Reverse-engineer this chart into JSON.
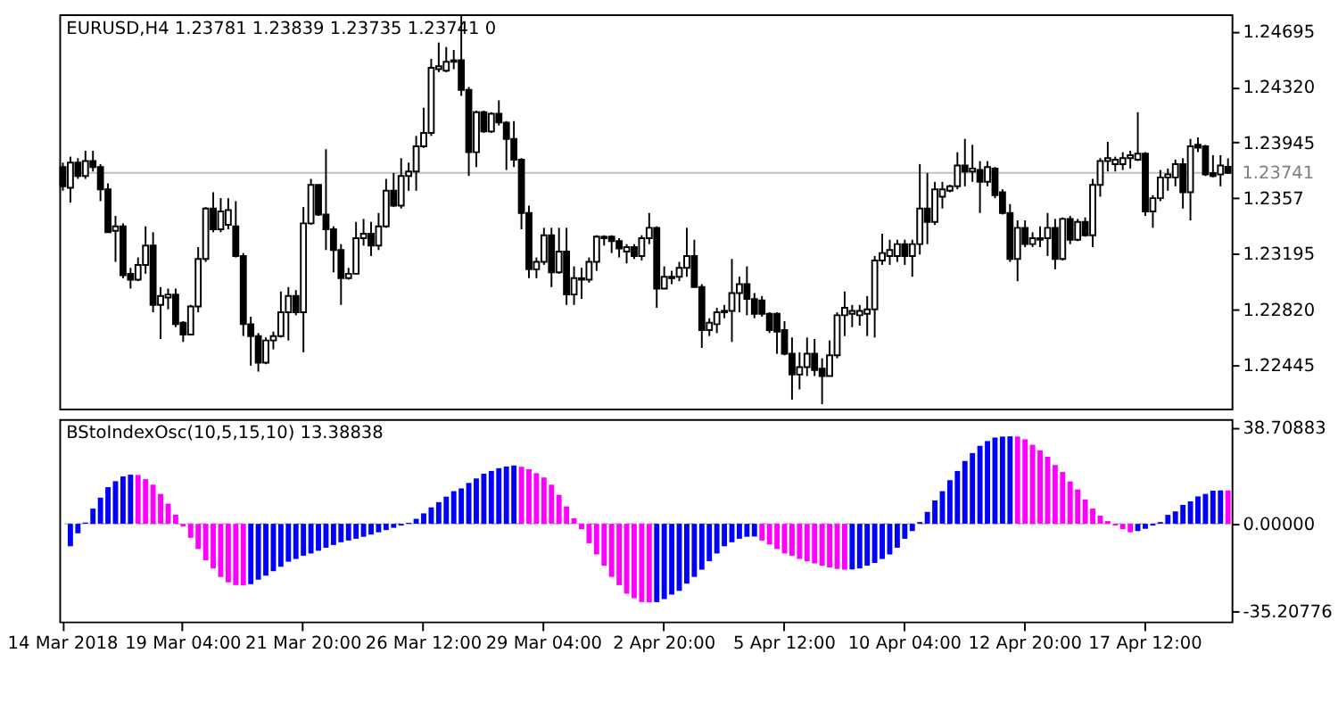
{
  "chart_data": [
    {
      "type": "candlestick",
      "title": "EURUSD,H4 1.23781 1.23839 1.23735 1.23741 0",
      "color": "#000000",
      "categories": [
        null,
        null,
        null,
        null,
        null,
        null,
        null,
        null,
        null,
        null,
        null,
        null,
        null,
        null,
        null,
        null,
        null,
        null,
        null,
        null,
        null,
        null,
        null,
        null,
        null,
        null,
        null,
        null,
        null,
        null,
        null,
        null,
        null,
        null,
        null,
        null,
        null,
        null,
        null,
        null,
        null,
        null,
        null,
        null,
        null,
        null,
        null,
        null,
        null,
        null,
        null,
        null,
        null,
        null,
        null,
        null,
        null,
        null,
        null,
        null,
        null,
        null,
        null,
        null,
        null,
        null,
        null,
        null,
        null,
        null,
        null,
        null,
        null,
        null,
        null,
        null,
        null,
        null,
        null,
        null,
        null,
        null,
        null,
        null,
        null,
        null,
        null,
        null,
        null,
        null,
        null,
        null,
        null,
        null,
        null,
        null,
        null,
        null,
        null,
        null,
        null,
        null,
        null,
        null,
        null,
        null,
        null,
        null,
        null,
        null,
        null,
        null,
        null,
        null,
        null,
        null,
        null,
        null,
        null,
        null,
        null,
        null,
        null,
        null,
        null,
        null,
        null,
        null,
        null,
        null,
        null,
        null,
        null,
        null,
        null,
        null,
        null,
        null,
        null,
        null,
        null,
        null,
        null,
        null,
        null,
        null,
        null,
        null,
        null,
        null,
        null,
        null,
        null,
        null,
        null,
        null
      ],
      "ohlc": [
        [
          1.2378,
          1.2381,
          1.2362,
          1.2365
        ],
        [
          1.2364,
          1.2385,
          1.2354,
          1.2381
        ],
        [
          1.2381,
          1.2384,
          1.237,
          1.2372
        ],
        [
          1.2372,
          1.2389,
          1.237,
          1.2382
        ],
        [
          1.2382,
          1.2389,
          1.2375,
          1.2378
        ],
        [
          1.2378,
          1.238,
          1.2355,
          1.2363
        ],
        [
          1.2363,
          1.2367,
          1.2334,
          1.2334
        ],
        [
          1.2335,
          1.2345,
          1.2314,
          1.2338
        ],
        [
          1.2338,
          1.234,
          1.2303,
          1.2305
        ],
        [
          1.2306,
          1.231,
          1.2296,
          1.2302
        ],
        [
          1.2302,
          1.2317,
          1.2301,
          1.2312
        ],
        [
          1.2312,
          1.2338,
          1.2306,
          1.2325
        ],
        [
          1.2325,
          1.2334,
          1.228,
          1.2285
        ],
        [
          1.2285,
          1.2297,
          1.2262,
          1.2291
        ],
        [
          1.229,
          1.2296,
          1.2282,
          1.2292
        ],
        [
          1.2292,
          1.2296,
          1.227,
          1.2272
        ],
        [
          1.2273,
          1.2274,
          1.226,
          1.2265
        ],
        [
          1.2265,
          1.2285,
          1.2265,
          1.2284
        ],
        [
          1.2284,
          1.2324,
          1.228,
          1.2316
        ],
        [
          1.2316,
          1.2351,
          1.2314,
          1.235
        ],
        [
          1.235,
          1.2361,
          1.2334,
          1.2336
        ],
        [
          1.2336,
          1.2357,
          1.2334,
          1.2348
        ],
        [
          1.2339,
          1.2357,
          1.2336,
          1.2349
        ],
        [
          1.2338,
          1.2355,
          1.2317,
          1.2318
        ],
        [
          1.2318,
          1.232,
          1.2264,
          1.2272
        ],
        [
          1.2272,
          1.2277,
          1.2244,
          1.2264
        ],
        [
          1.2264,
          1.2266,
          1.224,
          1.2246
        ],
        [
          1.2246,
          1.2263,
          1.2245,
          1.2261
        ],
        [
          1.2261,
          1.2267,
          1.2255,
          1.2264
        ],
        [
          1.2264,
          1.2294,
          1.2263,
          1.228
        ],
        [
          1.228,
          1.2297,
          1.2261,
          1.2291
        ],
        [
          1.2291,
          1.2295,
          1.2278,
          1.228
        ],
        [
          1.228,
          1.2351,
          1.2253,
          1.234
        ],
        [
          1.234,
          1.237,
          1.2339,
          1.2366
        ],
        [
          1.2366,
          1.2366,
          1.2345,
          1.2346
        ],
        [
          1.2346,
          1.239,
          1.2322,
          1.2336
        ],
        [
          1.2336,
          1.2338,
          1.2307,
          1.2322
        ],
        [
          1.2322,
          1.2326,
          1.2285,
          1.2303
        ],
        [
          1.2303,
          1.231,
          1.2302,
          1.2306
        ],
        [
          1.2306,
          1.2341,
          1.2306,
          1.233
        ],
        [
          1.233,
          1.2343,
          1.2325,
          1.2333
        ],
        [
          1.2333,
          1.2341,
          1.2318,
          1.2325
        ],
        [
          1.2325,
          1.2347,
          1.2322,
          1.2338
        ],
        [
          1.2338,
          1.237,
          1.2337,
          1.2362
        ],
        [
          1.2362,
          1.2374,
          1.2351,
          1.2352
        ],
        [
          1.2352,
          1.2384,
          1.235,
          1.2372
        ],
        [
          1.2372,
          1.2381,
          1.2362,
          1.2375
        ],
        [
          1.2375,
          1.2399,
          1.2362,
          1.2392
        ],
        [
          1.2392,
          1.2418,
          1.2391,
          1.2401
        ],
        [
          1.2401,
          1.2451,
          1.2399,
          1.2445
        ],
        [
          1.2444,
          1.2462,
          1.2442,
          1.2446
        ],
        [
          1.2443,
          1.2459,
          1.2442,
          1.2449
        ],
        [
          1.2449,
          1.2457,
          1.2444,
          1.245
        ],
        [
          1.245,
          1.248,
          1.2426,
          1.243
        ],
        [
          1.243,
          1.2432,
          1.2372,
          1.2388
        ],
        [
          1.2388,
          1.2416,
          1.2378,
          1.2415
        ],
        [
          1.2415,
          1.2416,
          1.2401,
          1.2402
        ],
        [
          1.2402,
          1.2415,
          1.2401,
          1.2414
        ],
        [
          1.2414,
          1.2423,
          1.2406,
          1.2408
        ],
        [
          1.2408,
          1.2409,
          1.2376,
          1.2397
        ],
        [
          1.2397,
          1.2409,
          1.2378,
          1.2383
        ],
        [
          1.2383,
          1.2384,
          1.2336,
          1.2347
        ],
        [
          1.2347,
          1.2352,
          1.2303,
          1.2309
        ],
        [
          1.2309,
          1.2317,
          1.2303,
          1.2314
        ],
        [
          1.2314,
          1.2337,
          1.2312,
          1.2332
        ],
        [
          1.2332,
          1.2337,
          1.2297,
          1.2307
        ],
        [
          1.2307,
          1.2337,
          1.2306,
          1.2321
        ],
        [
          1.2321,
          1.2337,
          1.2285,
          1.2292
        ],
        [
          1.2292,
          1.2311,
          1.2285,
          1.2303
        ],
        [
          1.2302,
          1.231,
          1.2289,
          1.2303
        ],
        [
          1.2302,
          1.2317,
          1.23,
          1.2314
        ],
        [
          1.2314,
          1.2332,
          1.2308,
          1.2331
        ],
        [
          1.233,
          1.2332,
          1.2325,
          1.2331
        ],
        [
          1.2331,
          1.2332,
          1.232,
          1.2328
        ],
        [
          1.2328,
          1.233,
          1.2317,
          1.2323
        ],
        [
          1.2321,
          1.2326,
          1.2313,
          1.2324
        ],
        [
          1.2324,
          1.2326,
          1.2316,
          1.2318
        ],
        [
          1.2318,
          1.2332,
          1.2315,
          1.233
        ],
        [
          1.233,
          1.2347,
          1.2326,
          1.2337
        ],
        [
          1.2337,
          1.2338,
          1.2283,
          1.2296
        ],
        [
          1.2296,
          1.2311,
          1.2296,
          1.2304
        ],
        [
          1.2303,
          1.2308,
          1.2299,
          1.2304
        ],
        [
          1.2304,
          1.2314,
          1.2301,
          1.231
        ],
        [
          1.231,
          1.2337,
          1.2304,
          1.2318
        ],
        [
          1.2318,
          1.2329,
          1.2297,
          1.2297
        ],
        [
          1.2297,
          1.2299,
          1.2256,
          1.2268
        ],
        [
          1.2268,
          1.2276,
          1.2264,
          1.2273
        ],
        [
          1.2272,
          1.2283,
          1.2266,
          1.228
        ],
        [
          1.228,
          1.2285,
          1.2276,
          1.2281
        ],
        [
          1.2281,
          1.2316,
          1.226,
          1.2293
        ],
        [
          1.2293,
          1.2304,
          1.228,
          1.2299
        ],
        [
          1.2299,
          1.2311,
          1.2278,
          1.2289
        ],
        [
          1.2289,
          1.2293,
          1.2276,
          1.2279
        ],
        [
          1.2288,
          1.2291,
          1.2277,
          1.2279
        ],
        [
          1.2279,
          1.228,
          1.2266,
          1.2268
        ],
        [
          1.2279,
          1.228,
          1.2252,
          1.2267
        ],
        [
          1.2268,
          1.2274,
          1.2251,
          1.2252
        ],
        [
          1.2252,
          1.2263,
          1.2221,
          1.2238
        ],
        [
          1.2238,
          1.2253,
          1.2228,
          1.2243
        ],
        [
          1.2243,
          1.2263,
          1.2237,
          1.2252
        ],
        [
          1.2252,
          1.2262,
          1.2237,
          1.2241
        ],
        [
          1.2242,
          1.2249,
          1.2218,
          1.2237
        ],
        [
          1.2237,
          1.2261,
          1.2237,
          1.2251
        ],
        [
          1.2251,
          1.228,
          1.2249,
          1.2278
        ],
        [
          1.2278,
          1.2294,
          1.2264,
          1.2283
        ],
        [
          1.2279,
          1.2285,
          1.227,
          1.2281
        ],
        [
          1.2278,
          1.2285,
          1.2271,
          1.2281
        ],
        [
          1.2279,
          1.2291,
          1.2264,
          1.2282
        ],
        [
          1.2282,
          1.2318,
          1.2263,
          1.2315
        ],
        [
          1.2315,
          1.2333,
          1.2312,
          1.232
        ],
        [
          1.2318,
          1.2329,
          1.2312,
          1.2322
        ],
        [
          1.2318,
          1.2329,
          1.2314,
          1.2326
        ],
        [
          1.2326,
          1.2329,
          1.2312,
          1.2318
        ],
        [
          1.2318,
          1.2329,
          1.2304,
          1.2326
        ],
        [
          1.2326,
          1.238,
          1.2319,
          1.235
        ],
        [
          1.235,
          1.2374,
          1.2326,
          1.2341
        ],
        [
          1.2341,
          1.2368,
          1.2339,
          1.2363
        ],
        [
          1.2358,
          1.2368,
          1.235,
          1.2363
        ],
        [
          1.2362,
          1.2366,
          1.2361,
          1.2365
        ],
        [
          1.2365,
          1.2388,
          1.2363,
          1.2379
        ],
        [
          1.2379,
          1.2397,
          1.2365,
          1.2375
        ],
        [
          1.2375,
          1.2393,
          1.2368,
          1.2377
        ],
        [
          1.2376,
          1.2382,
          1.2347,
          1.2368
        ],
        [
          1.2368,
          1.2382,
          1.2365,
          1.2378
        ],
        [
          1.2377,
          1.2378,
          1.2357,
          1.2359
        ],
        [
          1.2361,
          1.2363,
          1.2346,
          1.2347
        ],
        [
          1.2347,
          1.2353,
          1.2314,
          1.2316
        ],
        [
          1.2316,
          1.2342,
          1.2301,
          1.2337
        ],
        [
          1.2337,
          1.2342,
          1.2324,
          1.2326
        ],
        [
          1.2326,
          1.2334,
          1.2324,
          1.233
        ],
        [
          1.2329,
          1.2338,
          1.2324,
          1.233
        ],
        [
          1.233,
          1.2347,
          1.2318,
          1.2337
        ],
        [
          1.2337,
          1.2343,
          1.2309,
          1.2316
        ],
        [
          1.2316,
          1.2344,
          1.2315,
          1.2343
        ],
        [
          1.2343,
          1.2345,
          1.2326,
          1.2329
        ],
        [
          1.2329,
          1.2343,
          1.2328,
          1.2341
        ],
        [
          1.2341,
          1.2344,
          1.2331,
          1.2332
        ],
        [
          1.2332,
          1.237,
          1.2324,
          1.2366
        ],
        [
          1.2366,
          1.2384,
          1.2358,
          1.2382
        ],
        [
          1.2382,
          1.2395,
          1.2375,
          1.2384
        ],
        [
          1.238,
          1.2385,
          1.2375,
          1.2383
        ],
        [
          1.238,
          1.2388,
          1.2376,
          1.2384
        ],
        [
          1.2384,
          1.2389,
          1.2377,
          1.2386
        ],
        [
          1.2383,
          1.2415,
          1.2382,
          1.2387
        ],
        [
          1.2387,
          1.2388,
          1.2345,
          1.2348
        ],
        [
          1.2348,
          1.2359,
          1.2337,
          1.2357
        ],
        [
          1.2357,
          1.2376,
          1.2355,
          1.2371
        ],
        [
          1.2371,
          1.2377,
          1.2362,
          1.2373
        ],
        [
          1.2371,
          1.2383,
          1.2365,
          1.238
        ],
        [
          1.238,
          1.2384,
          1.235,
          1.2361
        ],
        [
          1.2361,
          1.2397,
          1.2342,
          1.2392
        ],
        [
          1.2393,
          1.2398,
          1.2388,
          1.2391
        ],
        [
          1.2392,
          1.2393,
          1.2372,
          1.2373
        ],
        [
          1.2374,
          1.2386,
          1.2371,
          1.2372
        ],
        [
          1.2373,
          1.2386,
          1.2365,
          1.2379
        ],
        [
          1.23781,
          1.23839,
          1.23735,
          1.23741
        ]
      ],
      "ylim": [
        1.2215,
        1.2481
      ],
      "yticks": [
        1.24695,
        {
          "value": 1.2432,
          "label": "1.24320"
        },
        1.23945,
        1.2357,
        1.23195,
        {
          "value": 1.2282,
          "label": "1.22820"
        },
        1.22445
      ],
      "ref_lines": [
        {
          "axis": "y",
          "value": 1.23741,
          "label": "1.23741",
          "color": "#c0c0c0"
        }
      ],
      "tick_labels": "y"
    },
    {
      "type": "bar",
      "title": "BStoIndexOsc(10,5,15,10) 13.38838",
      "categories": [
        "14 Mar 2018",
        null,
        null,
        null,
        null,
        null,
        null,
        null,
        null,
        null,
        null,
        null,
        null,
        null,
        null,
        null,
        "19 Mar 04:00",
        null,
        null,
        null,
        null,
        null,
        null,
        null,
        null,
        null,
        null,
        null,
        null,
        null,
        null,
        null,
        "21 Mar 20:00",
        null,
        null,
        null,
        null,
        null,
        null,
        null,
        null,
        null,
        null,
        null,
        null,
        null,
        null,
        null,
        "26 Mar 12:00",
        null,
        null,
        null,
        null,
        null,
        null,
        null,
        null,
        null,
        null,
        null,
        null,
        null,
        null,
        null,
        "29 Mar 04:00",
        null,
        null,
        null,
        null,
        null,
        null,
        null,
        null,
        null,
        null,
        null,
        null,
        null,
        null,
        null,
        "2 Apr 20:00",
        null,
        null,
        null,
        null,
        null,
        null,
        null,
        null,
        null,
        null,
        null,
        null,
        null,
        null,
        null,
        "5 Apr 12:00",
        null,
        null,
        null,
        null,
        null,
        null,
        null,
        null,
        null,
        null,
        null,
        null,
        null,
        null,
        null,
        "10 Apr 04:00",
        null,
        null,
        null,
        null,
        null,
        null,
        null,
        null,
        null,
        null,
        null,
        null,
        null,
        null,
        null,
        "12 Apr 20:00",
        null,
        null,
        null,
        null,
        null,
        null,
        null,
        null,
        null,
        null,
        null,
        null,
        null,
        null,
        null,
        "17 Apr 12:00",
        null,
        null,
        null,
        null,
        null,
        null,
        null,
        null,
        null,
        null,
        null
      ],
      "values": [
        null,
        -9.0,
        -3.8,
        0.5,
        6.1,
        10.5,
        14.7,
        17.1,
        19.0,
        19.7,
        19.6,
        17.9,
        15.7,
        12.0,
        8.1,
        3.7,
        -1.1,
        -5.6,
        -10.1,
        -14.6,
        -17.9,
        -21.3,
        -23.5,
        -24.6,
        -24.7,
        -24.2,
        -22.4,
        -20.8,
        -19.0,
        -17.2,
        -15.2,
        -14.1,
        -12.8,
        -11.9,
        -10.8,
        -9.6,
        -8.5,
        -7.4,
        -6.7,
        -6.0,
        -5.2,
        -4.3,
        -3.4,
        -2.5,
        -1.6,
        -0.7,
        0.4,
        2.0,
        4.2,
        6.6,
        8.7,
        10.9,
        13.1,
        14.2,
        16.4,
        18.2,
        20.1,
        21.2,
        22.3,
        23.0,
        23.4,
        22.9,
        21.9,
        20.3,
        18.6,
        15.7,
        11.6,
        7.0,
        2.2,
        -2.2,
        -7.8,
        -12.3,
        -16.8,
        -21.3,
        -24.6,
        -28.0,
        -29.8,
        -31.4,
        -31.5,
        -31.4,
        -30.2,
        -28.4,
        -26.9,
        -24.0,
        -21.3,
        -18.4,
        -15.0,
        -11.9,
        -9.0,
        -7.4,
        -6.0,
        -5.2,
        -5.1,
        -6.7,
        -8.3,
        -10.1,
        -11.9,
        -12.8,
        -14.1,
        -15.0,
        -15.9,
        -16.8,
        -17.5,
        -18.1,
        -18.4,
        -18.3,
        -17.9,
        -16.8,
        -15.7,
        -14.1,
        -12.3,
        -9.6,
        -6.0,
        -2.9,
        0.7,
        4.8,
        9.4,
        13.1,
        17.5,
        21.2,
        25.2,
        28.4,
        31.3,
        33.2,
        34.6,
        35.0,
        35.1,
        35.0,
        33.9,
        31.7,
        29.5,
        26.9,
        23.6,
        20.8,
        17.0,
        13.8,
        9.8,
        6.1,
        3.3,
        1.1,
        -0.7,
        -2.2,
        -3.4,
        -2.9,
        -2.0,
        -0.7,
        0.7,
        3.6,
        5.0,
        7.6,
        9.0,
        11.0,
        12.0,
        13.3,
        13.4,
        13.38838
      ],
      "colors": [
        null,
        "#0000ff",
        "#0000ff",
        "#0000ff",
        "#0000ff",
        "#0000ff",
        "#0000ff",
        "#0000ff",
        "#0000ff",
        "#0000ff",
        "#ff00ff",
        "#ff00ff",
        "#ff00ff",
        "#ff00ff",
        "#ff00ff",
        "#ff00ff",
        "#ff00ff",
        "#ff00ff",
        "#ff00ff",
        "#ff00ff",
        "#ff00ff",
        "#ff00ff",
        "#ff00ff",
        "#ff00ff",
        "#ff00ff",
        "#0000ff",
        "#0000ff",
        "#0000ff",
        "#0000ff",
        "#0000ff",
        "#0000ff",
        "#0000ff",
        "#0000ff",
        "#0000ff",
        "#0000ff",
        "#0000ff",
        "#0000ff",
        "#0000ff",
        "#0000ff",
        "#0000ff",
        "#0000ff",
        "#0000ff",
        "#0000ff",
        "#0000ff",
        "#0000ff",
        "#0000ff",
        "#0000ff",
        "#0000ff",
        "#0000ff",
        "#0000ff",
        "#0000ff",
        "#0000ff",
        "#0000ff",
        "#0000ff",
        "#0000ff",
        "#0000ff",
        "#0000ff",
        "#0000ff",
        "#0000ff",
        "#0000ff",
        "#0000ff",
        "#ff00ff",
        "#ff00ff",
        "#ff00ff",
        "#ff00ff",
        "#ff00ff",
        "#ff00ff",
        "#ff00ff",
        "#ff00ff",
        "#ff00ff",
        "#ff00ff",
        "#ff00ff",
        "#ff00ff",
        "#ff00ff",
        "#ff00ff",
        "#ff00ff",
        "#ff00ff",
        "#ff00ff",
        "#ff00ff",
        "#0000ff",
        "#0000ff",
        "#0000ff",
        "#0000ff",
        "#0000ff",
        "#0000ff",
        "#0000ff",
        "#0000ff",
        "#0000ff",
        "#0000ff",
        "#0000ff",
        "#0000ff",
        "#0000ff",
        "#0000ff",
        "#ff00ff",
        "#ff00ff",
        "#ff00ff",
        "#ff00ff",
        "#ff00ff",
        "#ff00ff",
        "#ff00ff",
        "#ff00ff",
        "#ff00ff",
        "#ff00ff",
        "#ff00ff",
        "#ff00ff",
        "#0000ff",
        "#0000ff",
        "#0000ff",
        "#0000ff",
        "#0000ff",
        "#0000ff",
        "#0000ff",
        "#0000ff",
        "#0000ff",
        "#0000ff",
        "#0000ff",
        "#0000ff",
        "#0000ff",
        "#0000ff",
        "#0000ff",
        "#0000ff",
        "#0000ff",
        "#0000ff",
        "#0000ff",
        "#0000ff",
        "#0000ff",
        "#0000ff",
        "#ff00ff",
        "#ff00ff",
        "#ff00ff",
        "#ff00ff",
        "#ff00ff",
        "#ff00ff",
        "#ff00ff",
        "#ff00ff",
        "#ff00ff",
        "#ff00ff",
        "#ff00ff",
        "#ff00ff",
        "#ff00ff",
        "#ff00ff",
        "#ff00ff",
        "#ff00ff",
        "#0000ff",
        "#0000ff",
        "#0000ff",
        "#0000ff",
        "#0000ff",
        "#0000ff",
        "#0000ff",
        "#0000ff",
        "#0000ff",
        "#0000ff",
        "#0000ff",
        "#0000ff",
        "#ff00ff"
      ],
      "ylim": [
        -39.2,
        42
      ],
      "yticks": [
        38.70883,
        {
          "value": 0,
          "label": "0.00000"
        },
        -35.20776
      ],
      "ref_lines": [
        {
          "axis": "y",
          "value": 0,
          "color": "#c0c0c0",
          "line_style": "dashed"
        }
      ]
    }
  ]
}
